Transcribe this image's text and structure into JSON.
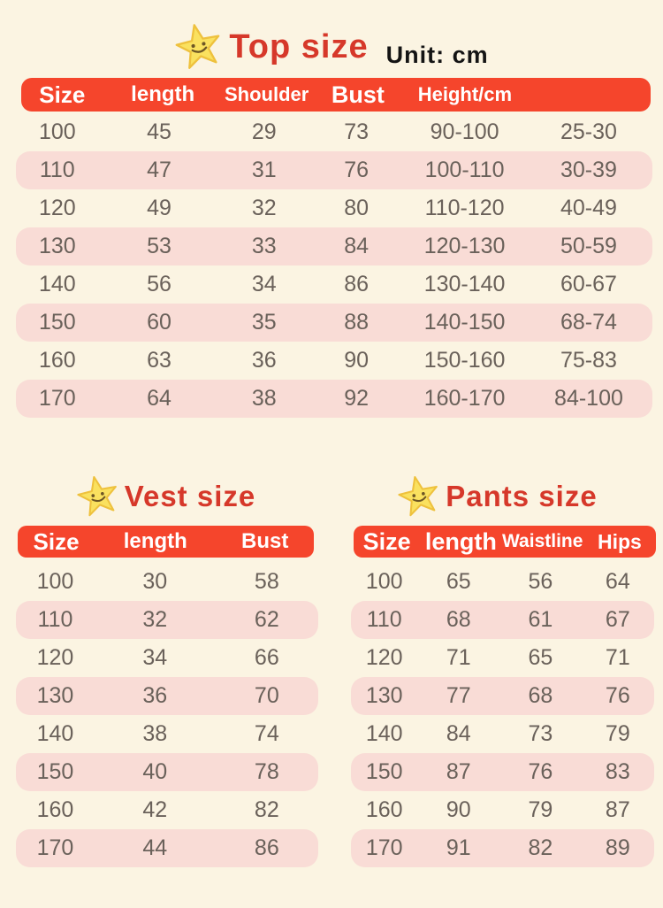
{
  "page": {
    "unit_label": "Unit: cm",
    "background_color": "#fbf4e2",
    "bar_color": "#f5452c",
    "title_color": "#d6382a",
    "row_stripe_color": "#f9dcd6",
    "cell_text_color": "#6a615a",
    "star_icon": "star-smiley-icon"
  },
  "top_table": {
    "title": "Top size",
    "headers": [
      "Size",
      "length",
      "Shoulder",
      "Bust",
      "Height/cm",
      ""
    ],
    "rows": [
      [
        "100",
        "45",
        "29",
        "73",
        "90-100",
        "25-30"
      ],
      [
        "110",
        "47",
        "31",
        "76",
        "100-110",
        "30-39"
      ],
      [
        "120",
        "49",
        "32",
        "80",
        "110-120",
        "40-49"
      ],
      [
        "130",
        "53",
        "33",
        "84",
        "120-130",
        "50-59"
      ],
      [
        "140",
        "56",
        "34",
        "86",
        "130-140",
        "60-67"
      ],
      [
        "150",
        "60",
        "35",
        "88",
        "140-150",
        "68-74"
      ],
      [
        "160",
        "63",
        "36",
        "90",
        "150-160",
        "75-83"
      ],
      [
        "170",
        "64",
        "38",
        "92",
        "160-170",
        "84-100"
      ]
    ]
  },
  "vest_table": {
    "title": "Vest size",
    "headers": [
      "Size",
      "length",
      "Bust"
    ],
    "rows": [
      [
        "100",
        "30",
        "58"
      ],
      [
        "110",
        "32",
        "62"
      ],
      [
        "120",
        "34",
        "66"
      ],
      [
        "130",
        "36",
        "70"
      ],
      [
        "140",
        "38",
        "74"
      ],
      [
        "150",
        "40",
        "78"
      ],
      [
        "160",
        "42",
        "82"
      ],
      [
        "170",
        "44",
        "86"
      ]
    ]
  },
  "pants_table": {
    "title": "Pants size",
    "headers": [
      "Size",
      "length",
      "Waistline",
      "Hips"
    ],
    "rows": [
      [
        "100",
        "65",
        "56",
        "64"
      ],
      [
        "110",
        "68",
        "61",
        "67"
      ],
      [
        "120",
        "71",
        "65",
        "71"
      ],
      [
        "130",
        "77",
        "68",
        "76"
      ],
      [
        "140",
        "84",
        "73",
        "79"
      ],
      [
        "150",
        "87",
        "76",
        "83"
      ],
      [
        "160",
        "90",
        "79",
        "87"
      ],
      [
        "170",
        "91",
        "82",
        "89"
      ]
    ]
  }
}
